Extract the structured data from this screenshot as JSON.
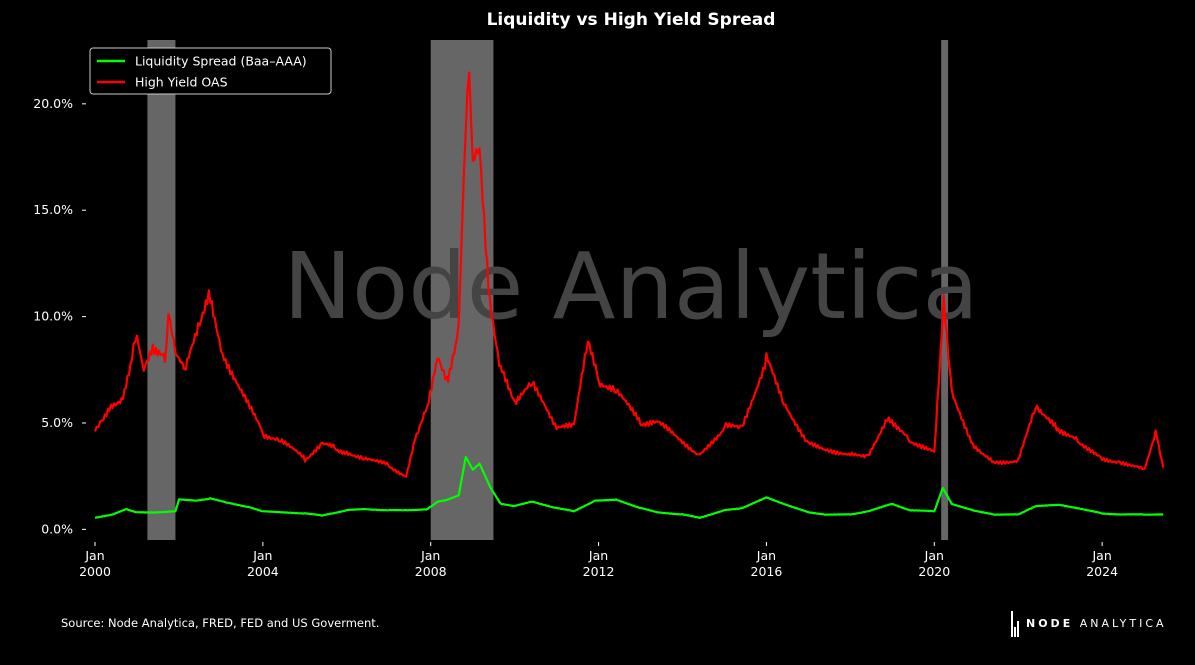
{
  "chart_data": {
    "type": "line",
    "title": "Liquidity vs High Yield Spread",
    "watermark": "Node Analytica",
    "xlabel": "",
    "ylabel": "",
    "xlim": [
      "2000-01-01",
      "2025-07-01"
    ],
    "ylim": [
      -0.5,
      23.0
    ],
    "yticks": [
      0,
      5,
      10,
      15,
      20
    ],
    "ytick_labels": [
      "0.0%",
      "5.0%",
      "10.0%",
      "15.0%",
      "20.0%"
    ],
    "xticks": [
      "2000-01-01",
      "2004-01-01",
      "2008-01-01",
      "2012-01-01",
      "2016-01-01",
      "2020-01-01",
      "2024-01-01"
    ],
    "xtick_labels": [
      [
        "Jan",
        "2000"
      ],
      [
        "Jan",
        "2004"
      ],
      [
        "Jan",
        "2008"
      ],
      [
        "Jan",
        "2012"
      ],
      [
        "Jan",
        "2016"
      ],
      [
        "Jan",
        "2020"
      ],
      [
        "Jan",
        "2024"
      ]
    ],
    "legend_position": "top-left",
    "grid": false,
    "shaded_periods": [
      {
        "start": "2001-04-01",
        "end": "2001-12-01"
      },
      {
        "start": "2008-01-01",
        "end": "2009-06-30"
      },
      {
        "start": "2020-03-01",
        "end": "2020-04-30"
      }
    ],
    "series": [
      {
        "name": "Liquidity Spread (Baa–AAA)",
        "color": "#00ff00",
        "points": [
          [
            "2000-01-01",
            0.55
          ],
          [
            "2000-06-01",
            0.7
          ],
          [
            "2000-10-01",
            0.95
          ],
          [
            "2001-01-01",
            0.8
          ],
          [
            "2001-06-01",
            0.8
          ],
          [
            "2001-12-01",
            0.85
          ],
          [
            "2002-01-01",
            1.4
          ],
          [
            "2002-06-01",
            1.35
          ],
          [
            "2002-10-01",
            1.45
          ],
          [
            "2003-03-01",
            1.25
          ],
          [
            "2003-09-01",
            1.05
          ],
          [
            "2004-01-01",
            0.85
          ],
          [
            "2004-06-01",
            0.8
          ],
          [
            "2005-01-01",
            0.75
          ],
          [
            "2005-06-01",
            0.65
          ],
          [
            "2006-01-01",
            0.9
          ],
          [
            "2006-06-01",
            0.95
          ],
          [
            "2007-01-01",
            0.9
          ],
          [
            "2007-06-01",
            0.9
          ],
          [
            "2007-12-01",
            0.95
          ],
          [
            "2008-03-01",
            1.3
          ],
          [
            "2008-06-01",
            1.4
          ],
          [
            "2008-09-01",
            1.6
          ],
          [
            "2008-11-01",
            3.4
          ],
          [
            "2009-01-01",
            2.8
          ],
          [
            "2009-03-01",
            3.1
          ],
          [
            "2009-06-01",
            2.0
          ],
          [
            "2009-09-01",
            1.2
          ],
          [
            "2010-01-01",
            1.1
          ],
          [
            "2010-06-01",
            1.3
          ],
          [
            "2011-01-01",
            1.0
          ],
          [
            "2011-06-01",
            0.85
          ],
          [
            "2011-12-01",
            1.35
          ],
          [
            "2012-06-01",
            1.4
          ],
          [
            "2013-01-01",
            1.0
          ],
          [
            "2013-06-01",
            0.8
          ],
          [
            "2014-01-01",
            0.7
          ],
          [
            "2014-06-01",
            0.55
          ],
          [
            "2015-01-01",
            0.9
          ],
          [
            "2015-06-01",
            1.0
          ],
          [
            "2016-01-01",
            1.5
          ],
          [
            "2016-06-01",
            1.2
          ],
          [
            "2017-01-01",
            0.8
          ],
          [
            "2017-06-01",
            0.7
          ],
          [
            "2018-01-01",
            0.7
          ],
          [
            "2018-06-01",
            0.85
          ],
          [
            "2019-01-01",
            1.2
          ],
          [
            "2019-06-01",
            0.9
          ],
          [
            "2020-01-01",
            0.85
          ],
          [
            "2020-03-15",
            1.95
          ],
          [
            "2020-06-01",
            1.2
          ],
          [
            "2020-12-01",
            0.9
          ],
          [
            "2021-06-01",
            0.7
          ],
          [
            "2022-01-01",
            0.7
          ],
          [
            "2022-06-01",
            1.1
          ],
          [
            "2023-01-01",
            1.15
          ],
          [
            "2023-06-01",
            1.0
          ],
          [
            "2024-01-01",
            0.75
          ],
          [
            "2024-06-01",
            0.7
          ],
          [
            "2025-01-01",
            0.7
          ],
          [
            "2025-06-15",
            0.7
          ]
        ]
      },
      {
        "name": "High Yield OAS",
        "color": "#ff0000",
        "points": [
          [
            "2000-01-01",
            4.7
          ],
          [
            "2000-03-01",
            5.2
          ],
          [
            "2000-06-01",
            5.9
          ],
          [
            "2000-09-01",
            6.2
          ],
          [
            "2000-12-01",
            8.5
          ],
          [
            "2001-01-01",
            9.2
          ],
          [
            "2001-03-01",
            7.5
          ],
          [
            "2001-06-01",
            8.5
          ],
          [
            "2001-09-01",
            8.0
          ],
          [
            "2001-10-01",
            10.0
          ],
          [
            "2001-12-01",
            8.2
          ],
          [
            "2002-03-01",
            7.5
          ],
          [
            "2002-07-01",
            9.8
          ],
          [
            "2002-10-01",
            11.1
          ],
          [
            "2003-01-01",
            8.5
          ],
          [
            "2003-06-01",
            6.8
          ],
          [
            "2004-01-01",
            4.5
          ],
          [
            "2004-06-01",
            4.2
          ],
          [
            "2005-01-01",
            3.3
          ],
          [
            "2005-06-01",
            4.0
          ],
          [
            "2005-10-01",
            3.8
          ],
          [
            "2006-01-01",
            3.6
          ],
          [
            "2006-06-01",
            3.4
          ],
          [
            "2007-01-01",
            3.0
          ],
          [
            "2007-06-01",
            2.5
          ],
          [
            "2007-09-01",
            4.5
          ],
          [
            "2007-12-01",
            5.8
          ],
          [
            "2008-03-01",
            8.2
          ],
          [
            "2008-06-01",
            7.0
          ],
          [
            "2008-09-01",
            9.5
          ],
          [
            "2008-11-01",
            19.0
          ],
          [
            "2008-12-01",
            21.8
          ],
          [
            "2009-01-01",
            17.0
          ],
          [
            "2009-03-01",
            18.0
          ],
          [
            "2009-06-01",
            10.5
          ],
          [
            "2009-09-01",
            7.5
          ],
          [
            "2010-01-01",
            6.0
          ],
          [
            "2010-06-01",
            6.8
          ],
          [
            "2011-01-01",
            4.8
          ],
          [
            "2011-06-01",
            4.8
          ],
          [
            "2011-10-01",
            9.0
          ],
          [
            "2012-01-01",
            7.0
          ],
          [
            "2012-06-01",
            6.5
          ],
          [
            "2013-01-01",
            5.0
          ],
          [
            "2013-06-01",
            5.0
          ],
          [
            "2014-06-01",
            3.5
          ],
          [
            "2015-01-01",
            4.8
          ],
          [
            "2015-06-01",
            4.8
          ],
          [
            "2016-01-01",
            8.0
          ],
          [
            "2016-06-01",
            6.0
          ],
          [
            "2017-01-01",
            4.0
          ],
          [
            "2017-06-01",
            3.8
          ],
          [
            "2018-01-01",
            3.5
          ],
          [
            "2018-06-01",
            3.5
          ],
          [
            "2018-12-01",
            5.3
          ],
          [
            "2019-06-01",
            4.2
          ],
          [
            "2020-01-01",
            3.6
          ],
          [
            "2020-03-23",
            10.8
          ],
          [
            "2020-06-01",
            6.5
          ],
          [
            "2020-12-01",
            4.0
          ],
          [
            "2021-06-01",
            3.2
          ],
          [
            "2022-01-01",
            3.2
          ],
          [
            "2022-06-01",
            5.9
          ],
          [
            "2022-12-01",
            4.8
          ],
          [
            "2023-06-01",
            4.2
          ],
          [
            "2024-01-01",
            3.3
          ],
          [
            "2024-06-01",
            3.2
          ],
          [
            "2025-01-01",
            2.8
          ],
          [
            "2025-04-10",
            4.6
          ],
          [
            "2025-06-15",
            2.9
          ]
        ]
      }
    ]
  },
  "footer": {
    "source": "Source: Node Analytica, FRED, FED and US Goverment.",
    "brand_bold": "NODE",
    "brand_light": "ANALYTICA"
  }
}
